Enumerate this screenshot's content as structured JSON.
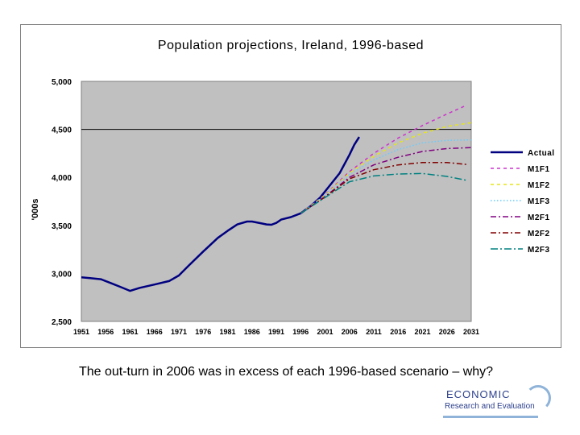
{
  "caption": "The out-turn in 2006 was in excess of each 1996-based scenario – why?",
  "logo": {
    "line1": "ECONOMIC",
    "line2": "Research and Evaluation"
  },
  "colors": {
    "plot_bg": "#c0c0c0",
    "actual": "#000080",
    "M1F1": "#cc33cc",
    "M1F2": "#e6e619",
    "M1F3": "#66ccff",
    "M2F1": "#800080",
    "M2F2": "#800000",
    "M2F3": "#008080"
  },
  "chart_data": {
    "type": "line",
    "title": "Population projections, Ireland, 1996-based",
    "ylabel": "'000s",
    "xlabel": "",
    "xlim": [
      1951,
      2031
    ],
    "ylim": [
      2500,
      5000
    ],
    "yticks": [
      "2,500",
      "3,000",
      "3,500",
      "4,000",
      "4,500",
      "5,000"
    ],
    "ytick_values": [
      2500,
      3000,
      3500,
      4000,
      4500,
      5000
    ],
    "xticks": [
      "1951",
      "1956",
      "1961",
      "1966",
      "1971",
      "1976",
      "1981",
      "1986",
      "1991",
      "1996",
      "2001",
      "2006",
      "2011",
      "2016",
      "2021",
      "2026",
      "2031"
    ],
    "reference_line": 4500,
    "legend_position": "right",
    "series": [
      {
        "name": "Actual",
        "style": "solid",
        "x": [
          1951,
          1953,
          1955,
          1957,
          1959,
          1961,
          1963,
          1966,
          1969,
          1971,
          1973,
          1976,
          1979,
          1981,
          1983,
          1985,
          1986,
          1988,
          1989,
          1990,
          1991,
          1992,
          1994,
          1996,
          1998,
          2000,
          2002,
          2004,
          2006,
          2007,
          2008
        ],
        "y": [
          2960,
          2950,
          2940,
          2900,
          2860,
          2818,
          2850,
          2884,
          2920,
          2978,
          3080,
          3228,
          3370,
          3443,
          3510,
          3540,
          3540,
          3520,
          3510,
          3507,
          3526,
          3560,
          3586,
          3626,
          3700,
          3790,
          3917,
          4044,
          4235,
          4340,
          4420
        ]
      },
      {
        "name": "M1F1",
        "style": "dash",
        "x": [
          1996,
          2001,
          2006,
          2011,
          2016,
          2021,
          2026,
          2030
        ],
        "y": [
          3626,
          3820,
          4060,
          4250,
          4410,
          4540,
          4660,
          4750
        ]
      },
      {
        "name": "M1F2",
        "style": "dash",
        "x": [
          1996,
          2001,
          2006,
          2011,
          2016,
          2021,
          2026,
          2031
        ],
        "y": [
          3626,
          3815,
          4045,
          4220,
          4360,
          4460,
          4530,
          4570
        ]
      },
      {
        "name": "M1F3",
        "style": "dot",
        "x": [
          1996,
          2001,
          2006,
          2011,
          2016,
          2021,
          2026,
          2031
        ],
        "y": [
          3626,
          3812,
          4030,
          4180,
          4290,
          4360,
          4385,
          4390
        ]
      },
      {
        "name": "M2F1",
        "style": "dashdot",
        "x": [
          1996,
          2001,
          2006,
          2011,
          2016,
          2021,
          2026,
          2031
        ],
        "y": [
          3626,
          3800,
          4000,
          4130,
          4210,
          4270,
          4300,
          4310
        ]
      },
      {
        "name": "M2F2",
        "style": "dashdot",
        "x": [
          1996,
          2001,
          2006,
          2011,
          2016,
          2021,
          2026,
          2030
        ],
        "y": [
          3626,
          3795,
          3985,
          4080,
          4130,
          4155,
          4155,
          4135
        ]
      },
      {
        "name": "M2F3",
        "style": "longdashdot",
        "x": [
          1996,
          2001,
          2006,
          2011,
          2016,
          2021,
          2026,
          2030
        ],
        "y": [
          3626,
          3790,
          3955,
          4015,
          4035,
          4040,
          4010,
          3970
        ]
      }
    ]
  }
}
